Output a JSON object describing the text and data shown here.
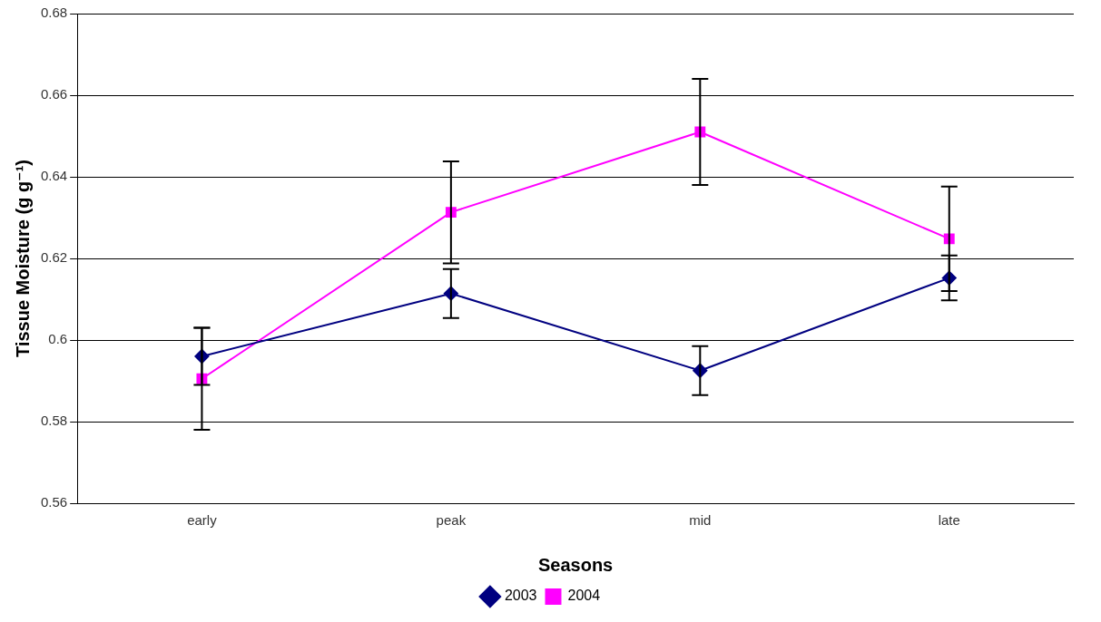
{
  "chart_data": {
    "type": "line",
    "xlabel": "Seasons",
    "ylabel": "Tissue Moisture (g g⁻¹)",
    "categories": [
      "early",
      "peak",
      "mid",
      "late"
    ],
    "series": [
      {
        "name": "2003",
        "color": "#000080",
        "marker": "diamond",
        "values": [
          0.596,
          0.6114,
          0.5925,
          0.6152
        ],
        "errors": [
          0.007,
          0.006,
          0.006,
          0.0055
        ]
      },
      {
        "name": "2004",
        "color": "#ff00ff",
        "marker": "square",
        "values": [
          0.5905,
          0.6313,
          0.651,
          0.6248
        ],
        "errors": [
          0.0125,
          0.0125,
          0.013,
          0.0128
        ]
      }
    ],
    "ylim": [
      0.56,
      0.68
    ],
    "yticks": [
      0.56,
      0.58,
      0.6,
      0.62,
      0.64,
      0.66,
      0.68
    ],
    "grid": "y",
    "legend": "bottom"
  }
}
